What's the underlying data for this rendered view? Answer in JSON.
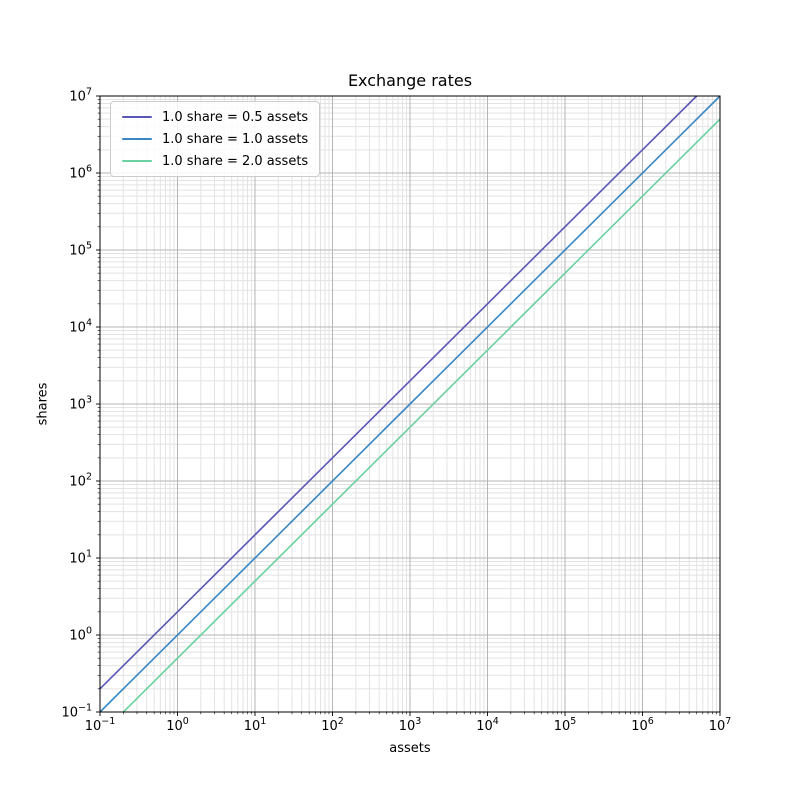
{
  "figure": {
    "background": "#ffffff"
  },
  "chart_data": {
    "type": "line",
    "title": "Exchange rates",
    "xlabel": "assets",
    "ylabel": "shares",
    "xscale": "log",
    "yscale": "log",
    "xlim": [
      0.1,
      10000000
    ],
    "ylim": [
      0.1,
      10000000
    ],
    "x_tick_exponents": [
      -1,
      0,
      1,
      2,
      3,
      4,
      5,
      6,
      7
    ],
    "y_tick_exponents": [
      -1,
      0,
      1,
      2,
      3,
      4,
      5,
      6,
      7
    ],
    "grid": {
      "which": "both",
      "major_color": "#b5b5b5",
      "minor_color": "#e3e3e3"
    },
    "relation": "shares = assets / assets_per_share",
    "series": [
      {
        "name": "1.0 share = 0.5 assets",
        "assets_per_share": 0.5,
        "color": "#5956b6"
      },
      {
        "name": "1.0 share = 1.0 assets",
        "assets_per_share": 1.0,
        "color": "#3787c4"
      },
      {
        "name": "1.0 share = 2.0 assets",
        "assets_per_share": 2.0,
        "color": "#6bd0a1"
      }
    ],
    "legend": {
      "position": "upper-left"
    }
  }
}
